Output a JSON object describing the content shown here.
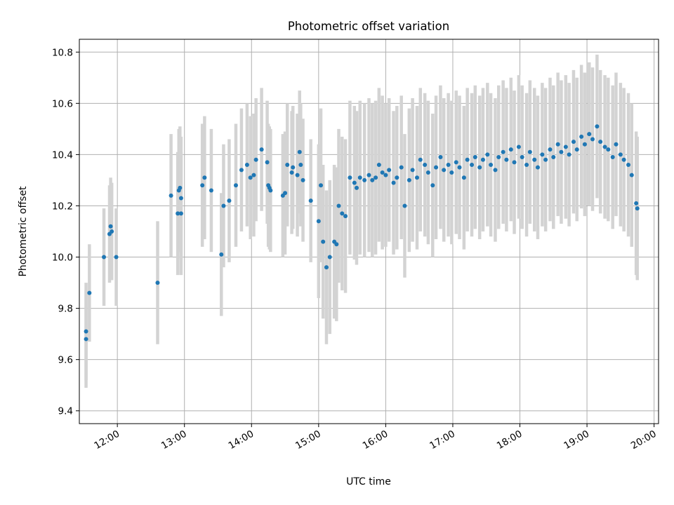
{
  "chart_data": {
    "type": "scatter",
    "title": "Photometric offset variation",
    "xlabel": "UTC time",
    "ylabel": "Photometric offset",
    "xlim": [
      "11:26",
      "20:04"
    ],
    "ylim": [
      9.35,
      10.85
    ],
    "x_ticks": [
      "12:00",
      "13:00",
      "14:00",
      "15:00",
      "16:00",
      "17:00",
      "18:00",
      "19:00",
      "20:00"
    ],
    "y_ticks": [
      "9.4",
      "9.6",
      "9.8",
      "10.0",
      "10.2",
      "10.4",
      "10.6",
      "10.8"
    ],
    "grid": true,
    "error_bars": true,
    "colors": {
      "points": "#1f77b4",
      "error_bars": "#d3d3d3",
      "grid": "#b0b0b0"
    },
    "series": [
      {
        "x": [
          "11:32",
          "11:32",
          "11:35",
          "11:48",
          "11:53",
          "11:54",
          "11:55",
          "11:59",
          "12:36",
          "12:48",
          "12:54",
          "12:55",
          "12:56",
          "12:57",
          "12:57",
          "13:16",
          "13:18",
          "13:24",
          "13:33",
          "13:35",
          "13:40",
          "13:46",
          "13:51",
          "13:56",
          "13:59",
          "14:02",
          "14:04",
          "14:09",
          "14:14",
          "14:15",
          "14:16",
          "14:17",
          "14:28",
          "14:30",
          "14:32",
          "14:36",
          "14:37",
          "14:41",
          "14:43",
          "14:44",
          "14:46",
          "14:53",
          "15:00",
          "15:02",
          "15:04",
          "15:07",
          "15:10",
          "15:14",
          "15:16",
          "15:18",
          "15:21",
          "15:24",
          "15:28",
          "15:32",
          "15:34",
          "15:37",
          "15:41",
          "15:45",
          "15:48",
          "15:51",
          "15:54",
          "15:57",
          "16:00",
          "16:03",
          "16:07",
          "16:10",
          "16:14",
          "16:17",
          "16:21",
          "16:24",
          "16:28",
          "16:31",
          "16:35",
          "16:38",
          "16:42",
          "16:45",
          "16:49",
          "16:52",
          "16:56",
          "16:59",
          "17:03",
          "17:06",
          "17:10",
          "17:13",
          "17:17",
          "17:20",
          "17:24",
          "17:27",
          "17:31",
          "17:34",
          "17:38",
          "17:41",
          "17:45",
          "17:48",
          "17:52",
          "17:55",
          "17:59",
          "18:02",
          "18:06",
          "18:09",
          "18:13",
          "18:16",
          "18:20",
          "18:23",
          "18:27",
          "18:30",
          "18:34",
          "18:37",
          "18:41",
          "18:44",
          "18:48",
          "18:51",
          "18:55",
          "18:58",
          "19:02",
          "19:05",
          "19:09",
          "19:12",
          "19:16",
          "19:19",
          "19:23",
          "19:26",
          "19:30",
          "19:33",
          "19:37",
          "19:40",
          "19:44",
          "19:45"
        ],
        "y": [
          9.71,
          9.68,
          9.86,
          10.0,
          10.09,
          10.12,
          10.1,
          10.0,
          9.9,
          10.24,
          10.17,
          10.26,
          10.27,
          10.23,
          10.17,
          10.28,
          10.31,
          10.26,
          10.01,
          10.2,
          10.22,
          10.28,
          10.34,
          10.36,
          10.31,
          10.32,
          10.38,
          10.42,
          10.37,
          10.28,
          10.27,
          10.26,
          10.24,
          10.25,
          10.36,
          10.33,
          10.35,
          10.32,
          10.41,
          10.36,
          10.3,
          10.22,
          10.14,
          10.28,
          10.06,
          9.96,
          10.0,
          10.06,
          10.05,
          10.2,
          10.17,
          10.16,
          10.31,
          10.29,
          10.27,
          10.31,
          10.3,
          10.32,
          10.3,
          10.31,
          10.36,
          10.33,
          10.32,
          10.34,
          10.29,
          10.31,
          10.35,
          10.2,
          10.3,
          10.34,
          10.31,
          10.38,
          10.36,
          10.33,
          10.28,
          10.35,
          10.39,
          10.34,
          10.36,
          10.33,
          10.37,
          10.35,
          10.31,
          10.38,
          10.36,
          10.39,
          10.35,
          10.38,
          10.4,
          10.36,
          10.34,
          10.39,
          10.41,
          10.38,
          10.42,
          10.37,
          10.43,
          10.39,
          10.36,
          10.41,
          10.38,
          10.35,
          10.4,
          10.38,
          10.42,
          10.39,
          10.44,
          10.41,
          10.43,
          10.4,
          10.45,
          10.42,
          10.47,
          10.44,
          10.48,
          10.46,
          10.51,
          10.45,
          10.43,
          10.42,
          10.39,
          10.44,
          10.4,
          10.38,
          10.36,
          10.32,
          10.21,
          10.19
        ]
      }
    ]
  }
}
